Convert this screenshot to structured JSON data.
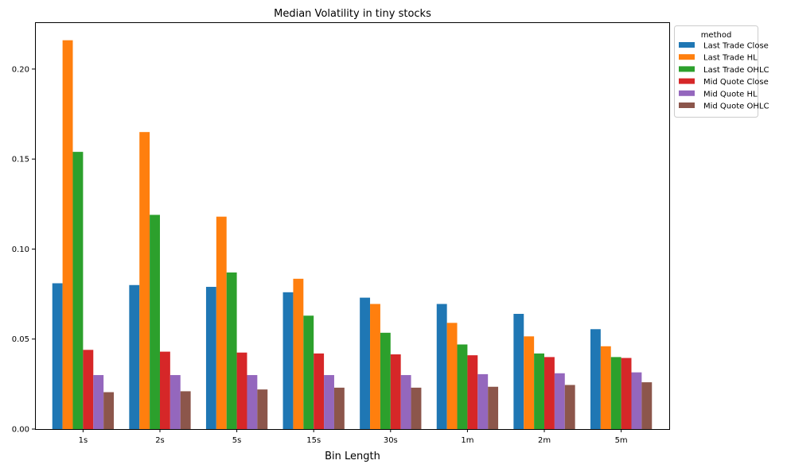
{
  "chart_data": {
    "type": "bar",
    "title": "Median Volatility in tiny stocks",
    "xlabel": "Bin Length",
    "ylabel": "",
    "ylim": [
      0,
      0.226
    ],
    "yticks": [
      "0.00",
      "0.05",
      "0.10",
      "0.15",
      "0.20"
    ],
    "grid": false,
    "legend_title": "method",
    "legend_position": "outside-top-right",
    "categories": [
      "1s",
      "2s",
      "5s",
      "15s",
      "30s",
      "1m",
      "2m",
      "5m"
    ],
    "series": [
      {
        "name": "Last Trade Close",
        "color": "#1f77b4",
        "values": [
          0.081,
          0.08,
          0.079,
          0.076,
          0.073,
          0.0695,
          0.064,
          0.0555
        ]
      },
      {
        "name": "Last Trade HL",
        "color": "#ff7f0e",
        "values": [
          0.216,
          0.165,
          0.118,
          0.0835,
          0.0695,
          0.059,
          0.0515,
          0.046
        ]
      },
      {
        "name": "Last Trade OHLC",
        "color": "#2ca02c",
        "values": [
          0.154,
          0.119,
          0.087,
          0.063,
          0.0535,
          0.047,
          0.042,
          0.04
        ]
      },
      {
        "name": "Mid Quote Close",
        "color": "#d62728",
        "values": [
          0.044,
          0.043,
          0.0425,
          0.042,
          0.0415,
          0.041,
          0.04,
          0.0395
        ]
      },
      {
        "name": "Mid Quote HL",
        "color": "#9467bd",
        "values": [
          0.03,
          0.03,
          0.03,
          0.03,
          0.03,
          0.0305,
          0.031,
          0.0315
        ]
      },
      {
        "name": "Mid Quote OHLC",
        "color": "#8c564b",
        "values": [
          0.0205,
          0.021,
          0.022,
          0.023,
          0.023,
          0.0235,
          0.0245,
          0.026
        ]
      }
    ]
  }
}
